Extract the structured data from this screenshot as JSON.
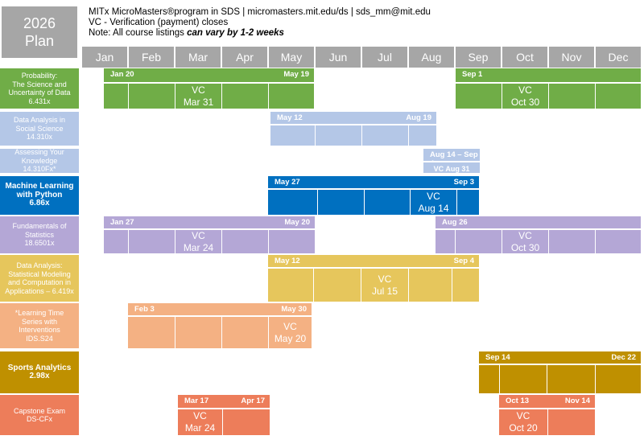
{
  "header": {
    "plan_year": "2026",
    "plan_word": "Plan",
    "line1": "MITx MicroMasters®program in SDS | micromasters.mit.edu/ds | sds_mm@mit.edu",
    "line2": "VC - Verification (payment) closes",
    "line3_prefix": "Note: All course listings ",
    "line3_emph": "can vary by 1-2 weeks"
  },
  "chart_data": {
    "type": "table",
    "months": [
      "Jan",
      "Feb",
      "Mar",
      "Apr",
      "May",
      "Jun",
      "Jul",
      "Aug",
      "Sep",
      "Oct",
      "Nov",
      "Dec"
    ],
    "courses": [
      {
        "label": [
          "Probability:",
          "The Science and",
          "Uncertainty of Data",
          "6.431x"
        ],
        "bold": false,
        "color": "#70ad47",
        "runs": [
          {
            "start_label": "Jan 20",
            "end_label": "May 19",
            "vc": "VC",
            "vc_date": "Mar 31"
          },
          {
            "start_label": "Sep 1",
            "end_label": "",
            "vc": "VC",
            "vc_date": "Oct 30"
          }
        ]
      },
      {
        "label": [
          "Data Analysis in",
          "Social Science",
          "14.310x"
        ],
        "bold": false,
        "color": "#b4c7e7",
        "runs": [
          {
            "start_label": "May 12",
            "end_label": "Aug 19",
            "vc": "",
            "vc_date": ""
          }
        ]
      },
      {
        "label": [
          "Assessing Your",
          "Knowledge",
          "14.310Fx*"
        ],
        "bold": false,
        "color": "#b4c7e7",
        "runs": [
          {
            "start_label": "Aug 14 – Sep 4",
            "end_label": "",
            "vc": "VC Aug 31",
            "vc_date": ""
          }
        ]
      },
      {
        "label": [
          "Machine Learning",
          "with Python",
          "6.86x"
        ],
        "bold": true,
        "color": "#0070c0",
        "runs": [
          {
            "start_label": "May 27",
            "end_label": "Sep 3",
            "vc": "VC",
            "vc_date": "Aug 14"
          }
        ]
      },
      {
        "label": [
          "Fundamentals of",
          "Statistics",
          "18.6501x"
        ],
        "bold": false,
        "color": "#b4a7d6",
        "runs": [
          {
            "start_label": "Jan 27",
            "end_label": "May 20",
            "vc": "VC",
            "vc_date": "Mar 24"
          },
          {
            "start_label": "Aug 26",
            "end_label": "",
            "vc": "VC",
            "vc_date": "Oct 30"
          }
        ]
      },
      {
        "label": [
          "Data Analysis:",
          "Statistical Modeling",
          "and Computation in",
          "Applications – 6.419x"
        ],
        "bold": false,
        "color": "#e6c65c",
        "runs": [
          {
            "start_label": "May 12",
            "end_label": "Sep 4",
            "vc": "VC",
            "vc_date": "Jul 15"
          }
        ]
      },
      {
        "label": [
          "*Learning Time",
          "Series with",
          "Interventions",
          "IDS.S24"
        ],
        "bold": false,
        "color": "#f4b183",
        "runs": [
          {
            "start_label": "Feb 3",
            "end_label": "May 30",
            "vc": "VC",
            "vc_date": "May 20"
          }
        ]
      },
      {
        "label": [
          "Sports Analytics",
          "2.98x"
        ],
        "bold": true,
        "color": "#bf9000",
        "runs": [
          {
            "start_label": "Sep 14",
            "end_label": "Dec 22",
            "vc": "",
            "vc_date": ""
          }
        ]
      },
      {
        "label": [
          "Capstone Exam",
          "DS-CFx"
        ],
        "bold": false,
        "color": "#ed7d5a",
        "runs": [
          {
            "start_label": "Mar 17",
            "end_label": "Apr 17",
            "vc": "VC",
            "vc_date": "Mar 24"
          },
          {
            "start_label": "Oct 13",
            "end_label": "Nov 14",
            "vc": "VC",
            "vc_date": "Oct 20"
          }
        ]
      }
    ]
  }
}
